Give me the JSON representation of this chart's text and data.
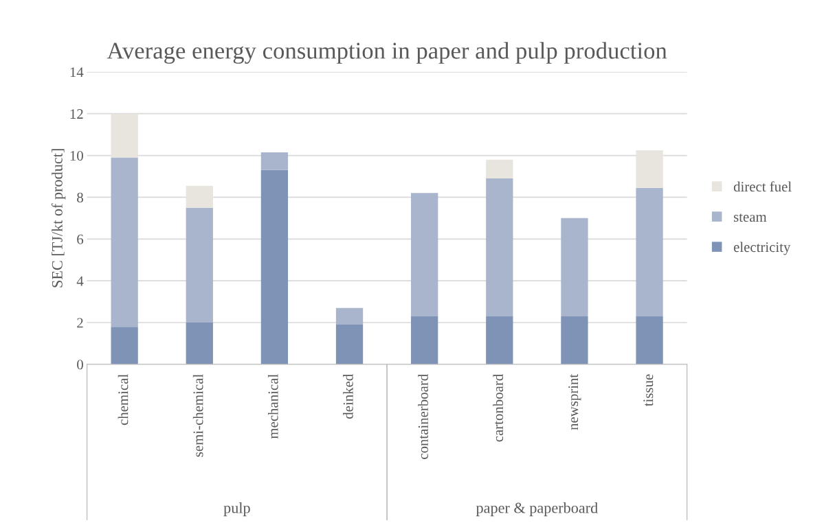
{
  "chart_data": {
    "type": "bar",
    "title": "Average energy consumption in paper and pulp production",
    "ylabel": "SEC [TJ/kt of product]",
    "categories": [
      "chemical",
      "semi-chemical",
      "mechanical",
      "deinked",
      "containerboard",
      "cartonboard",
      "newsprint",
      "tissue"
    ],
    "series": [
      {
        "name": "electricity",
        "color": "#7f93b6",
        "values": [
          1.8,
          2.0,
          9.3,
          1.9,
          2.3,
          2.3,
          2.3,
          2.3
        ]
      },
      {
        "name": "steam",
        "color": "#a9b5cd",
        "values": [
          8.1,
          5.5,
          0.85,
          0.8,
          5.9,
          6.6,
          4.7,
          6.15
        ]
      },
      {
        "name": "direct fuel",
        "color": "#e8e4de",
        "values": [
          2.1,
          1.05,
          0,
          0,
          0,
          0.9,
          0,
          1.8
        ]
      }
    ],
    "stacked": true,
    "ylim": [
      0,
      14
    ],
    "yticks": [
      0,
      2,
      4,
      6,
      8,
      10,
      12,
      14
    ],
    "grid": "y",
    "legend": "right",
    "annotations": [
      "pulp",
      "paper & paperboard"
    ]
  }
}
